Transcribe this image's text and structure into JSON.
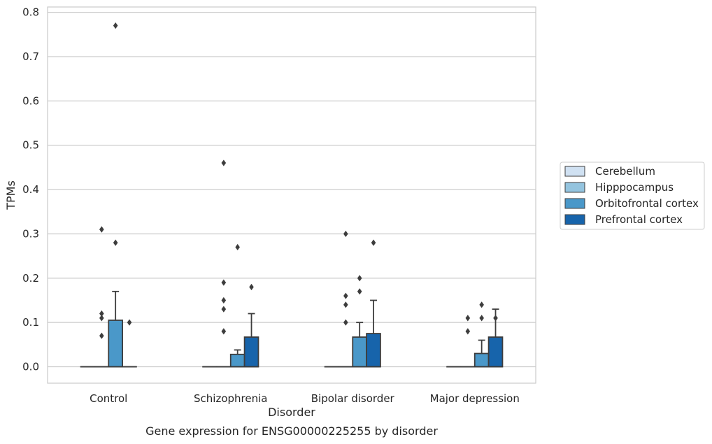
{
  "chart_data": {
    "type": "box",
    "xlabel": "Disorder",
    "ylabel": "TPMs",
    "caption": "Gene expression for ENSG00000225255 by disorder",
    "ylim": [
      -0.037,
      0.812
    ],
    "yticks": [
      0.0,
      0.1,
      0.2,
      0.3,
      0.4,
      0.5,
      0.6,
      0.7,
      0.8
    ],
    "ytick_labels": [
      "0.0",
      "0.1",
      "0.2",
      "0.3",
      "0.4",
      "0.5",
      "0.6",
      "0.7",
      "0.8"
    ],
    "grid": "horizontal",
    "legend_position": "right",
    "categories": [
      "Control",
      "Schizophrenia",
      "Bipolar disorder",
      "Major depression"
    ],
    "series": [
      {
        "name": "Cerebellum",
        "color": "#d0e1f2",
        "boxes": [
          {
            "q1": 0,
            "median": 0,
            "q3": 0,
            "whislo": 0,
            "whishi": 0,
            "fliers": []
          },
          {
            "q1": 0,
            "median": 0,
            "q3": 0,
            "whislo": 0,
            "whishi": 0,
            "fliers": []
          },
          {
            "q1": 0,
            "median": 0,
            "q3": 0,
            "whislo": 0,
            "whishi": 0,
            "fliers": []
          },
          {
            "q1": 0,
            "median": 0,
            "q3": 0,
            "whislo": 0,
            "whishi": 0,
            "fliers": []
          }
        ]
      },
      {
        "name": "Hipppocampus",
        "color": "#94c4df",
        "boxes": [
          {
            "q1": 0,
            "median": 0,
            "q3": 0,
            "whislo": 0,
            "whishi": 0,
            "fliers": [
              0.07,
              0.11,
              0.12,
              0.31
            ]
          },
          {
            "q1": 0,
            "median": 0,
            "q3": 0,
            "whislo": 0,
            "whishi": 0,
            "fliers": [
              0.13,
              0.15,
              0.08,
              0.19,
              0.46
            ]
          },
          {
            "q1": 0,
            "median": 0,
            "q3": 0,
            "whislo": 0,
            "whishi": 0,
            "fliers": [
              0.1,
              0.14,
              0.16,
              0.3
            ]
          },
          {
            "q1": 0,
            "median": 0,
            "q3": 0,
            "whislo": 0,
            "whishi": 0,
            "fliers": [
              0.08,
              0.11
            ]
          }
        ]
      },
      {
        "name": "Orbitofrontal cortex",
        "color": "#4a98c9",
        "boxes": [
          {
            "q1": 0,
            "median": 0,
            "q3": 0.105,
            "whislo": 0,
            "whishi": 0.17,
            "fliers": [
              0.28,
              0.77
            ]
          },
          {
            "q1": 0,
            "median": 0,
            "q3": 0.028,
            "whislo": 0,
            "whishi": 0.038,
            "fliers": [
              0.27
            ]
          },
          {
            "q1": 0,
            "median": 0,
            "q3": 0.067,
            "whislo": 0,
            "whishi": 0.1,
            "fliers": [
              0.17,
              0.2
            ]
          },
          {
            "q1": 0,
            "median": 0,
            "q3": 0.03,
            "whislo": 0,
            "whishi": 0.06,
            "fliers": [
              0.11,
              0.14
            ]
          }
        ]
      },
      {
        "name": "Prefrontal cortex",
        "color": "#1764ab",
        "boxes": [
          {
            "q1": 0,
            "median": 0,
            "q3": 0,
            "whislo": 0,
            "whishi": 0,
            "fliers": [
              0.1
            ]
          },
          {
            "q1": 0,
            "median": 0,
            "q3": 0.067,
            "whislo": 0,
            "whishi": 0.12,
            "fliers": [
              0.18
            ]
          },
          {
            "q1": 0,
            "median": 0,
            "q3": 0.075,
            "whislo": 0,
            "whishi": 0.15,
            "fliers": [
              0.28
            ]
          },
          {
            "q1": 0,
            "median": 0,
            "q3": 0.067,
            "whislo": 0,
            "whishi": 0.13,
            "fliers": [
              0.11
            ]
          }
        ]
      }
    ]
  }
}
